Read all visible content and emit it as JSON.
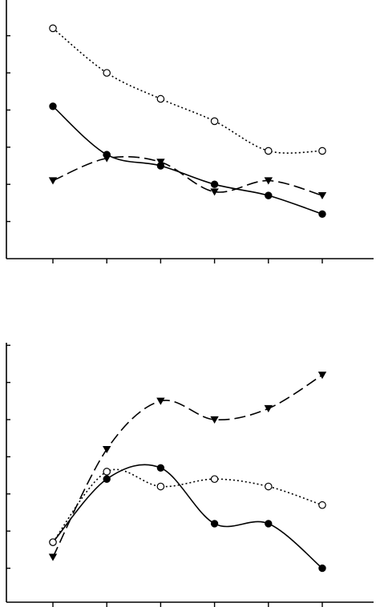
{
  "chart_data": [
    {
      "type": "line",
      "title": "",
      "xlabel": "",
      "ylabel": "",
      "x": [
        1,
        2,
        3,
        4,
        5,
        6
      ],
      "xlim": [
        0,
        7
      ],
      "ylim": [
        0,
        7
      ],
      "grid": false,
      "legend": "none",
      "series": [
        {
          "marker": "filled-circle",
          "line": "solid",
          "values": [
            4.1,
            2.8,
            2.5,
            2.0,
            1.7,
            1.2
          ]
        },
        {
          "marker": "filled-triangle-down",
          "line": "dashed",
          "values": [
            2.1,
            2.7,
            2.6,
            1.8,
            2.1,
            1.7
          ]
        },
        {
          "marker": "open-circle",
          "line": "dotted",
          "values": [
            6.2,
            5.0,
            4.3,
            3.7,
            2.9,
            2.9
          ]
        }
      ]
    },
    {
      "type": "line",
      "title": "",
      "xlabel": "",
      "ylabel": "",
      "x": [
        1,
        2,
        3,
        4,
        5,
        6
      ],
      "xlim": [
        0,
        7
      ],
      "ylim": [
        0,
        7
      ],
      "grid": false,
      "legend": "none",
      "series": [
        {
          "marker": "filled-circle",
          "line": "solid",
          "values": [
            1.7,
            3.4,
            3.7,
            2.2,
            2.2,
            1.0
          ]
        },
        {
          "marker": "filled-triangle-down",
          "line": "dashed",
          "values": [
            1.3,
            4.2,
            5.5,
            5.0,
            5.3,
            6.2
          ]
        },
        {
          "marker": "open-circle",
          "line": "dotted",
          "values": [
            1.7,
            3.6,
            3.2,
            3.4,
            3.2,
            2.7
          ]
        }
      ]
    }
  ],
  "colors": {
    "ink": "#000000",
    "background": "#ffffff"
  }
}
